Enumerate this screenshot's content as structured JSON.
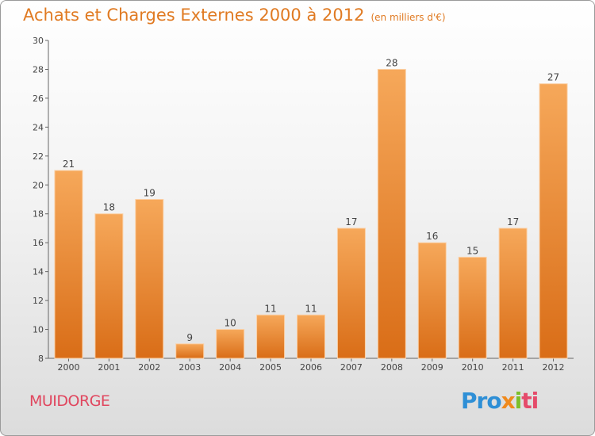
{
  "header": {
    "title": "Achats et Charges Externes 2000 à 2012",
    "unit": "(en milliers d'€)"
  },
  "commune": "MUIDORGE",
  "logo": {
    "p1": "Pro",
    "p2": "x",
    "p3": "i",
    "p4": "ti"
  },
  "colors": {
    "bar_top": "#f6a85a",
    "bar_bottom": "#d96d17",
    "title": "#e07a22",
    "commune": "#e0465e"
  },
  "chart_data": {
    "type": "bar",
    "categories": [
      "2000",
      "2001",
      "2002",
      "2003",
      "2004",
      "2005",
      "2006",
      "2007",
      "2008",
      "2009",
      "2010",
      "2011",
      "2012"
    ],
    "values": [
      21,
      18,
      19,
      9,
      10,
      11,
      11,
      17,
      28,
      16,
      15,
      17,
      27
    ],
    "title": "Achats et Charges Externes 2000 à 2012",
    "subtitle": "(en milliers d'€)",
    "ylim": [
      8,
      30
    ],
    "yticks": [
      8,
      10,
      12,
      14,
      16,
      18,
      20,
      22,
      24,
      26,
      28,
      30
    ],
    "grid": false,
    "legend": "none"
  }
}
